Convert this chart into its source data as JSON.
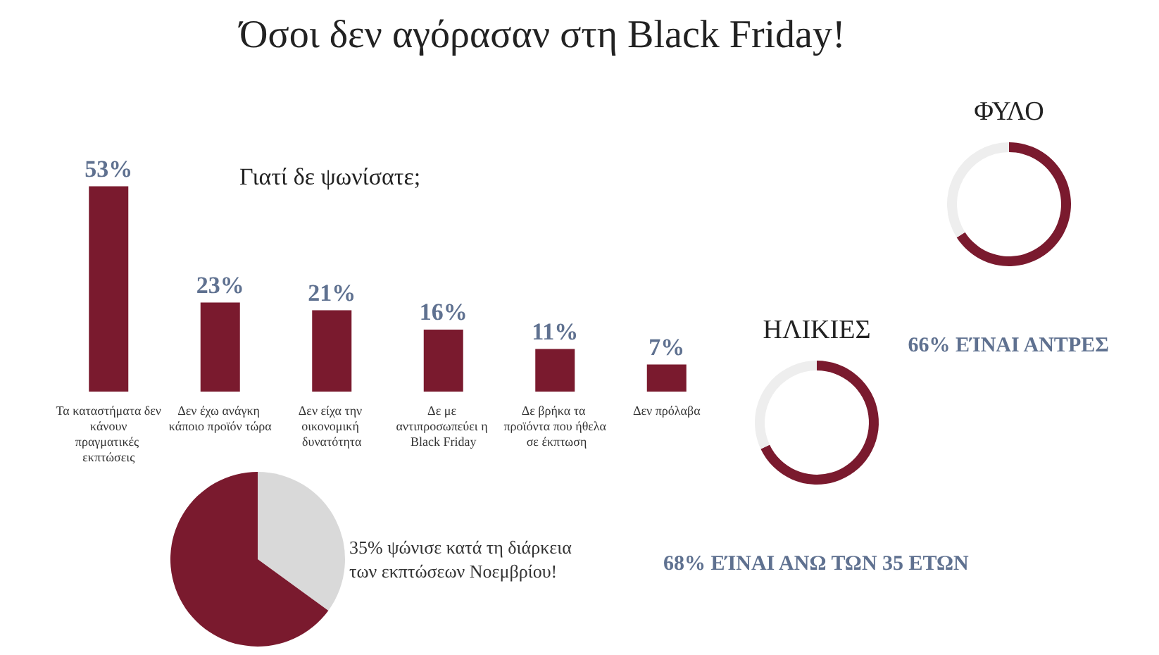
{
  "chart_data": [
    {
      "type": "bar",
      "title": "Όσοι δεν αγόρασαν στη Black Friday!",
      "subtitle": "Γιατί δε ψωνίσατε;",
      "categories": [
        "Τα καταστήματα δεν κάνουν πραγματικές εκπτώσεις",
        "Δεν έχω ανάγκη κάποιο προϊόν τώρα",
        "Δεν είχα την οικονομική δυνατότητα",
        "Δε με αντιπροσωπεύει η Black Friday",
        "Δε βρήκα τα προϊόντα που ήθελα σε έκπτωση",
        "Δεν πρόλαβα"
      ],
      "values": [
        53,
        23,
        21,
        16,
        11,
        7
      ],
      "value_labels": [
        "53%",
        "23%",
        "21%",
        "16%",
        "11%",
        "7%"
      ],
      "color": "#7a1a2e",
      "tick_labels": "x"
    },
    {
      "type": "pie",
      "categories": [
        null,
        null
      ],
      "values": [
        35,
        65
      ],
      "colors": [
        "#d9d9d9",
        "#7a1a2e"
      ],
      "annotations": [
        "35% ψώνισε κατά τη διάρκεια των εκπτώσεων Νοεμβρίου!"
      ]
    },
    {
      "type": "donut",
      "title": "ΗΛΙΚΙΕΣ",
      "categories": [
        null,
        null
      ],
      "values": [
        68,
        32
      ],
      "colors": [
        "#7a1a2e",
        "#eeeeee"
      ],
      "annotations": [
        "68% ΕΊΝΑΙ ΑΝΩ ΤΩΝ 35 ΕΤΩΝ"
      ]
    },
    {
      "type": "donut",
      "title": "ΦΥΛΟ",
      "categories": [
        null,
        null
      ],
      "values": [
        66,
        34
      ],
      "colors": [
        "#7a1a2e",
        "#eeeeee"
      ],
      "annotations": [
        "66% ΕΊΝΑΙ ΑΝΤΡΕΣ"
      ]
    }
  ]
}
